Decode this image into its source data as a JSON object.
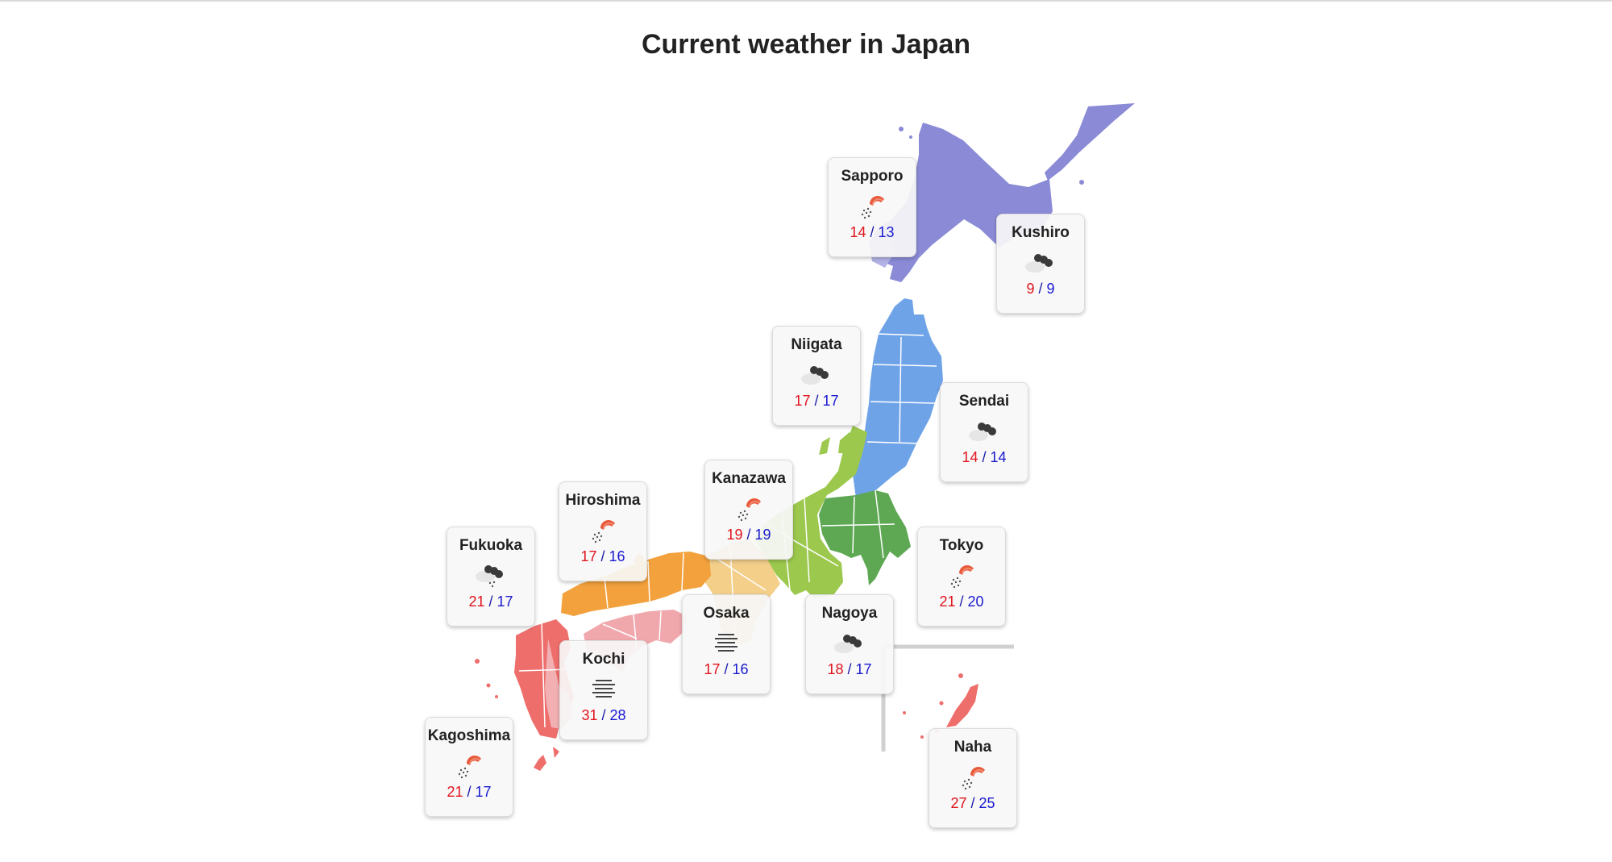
{
  "header": {
    "title": "Current weather in Japan"
  },
  "temp_separator": "/",
  "colors": {
    "hokkaido": "#8a8ad6",
    "tohoku": "#6ea3e8",
    "kanto": "#5ea854",
    "chubu": "#9cc84e",
    "kinki": "#f3cf8a",
    "chugoku": "#f2a13c",
    "shikoku": "#f0a8ad",
    "kyushu": "#ee6e6c",
    "high_temp": "#e0141e",
    "low_temp": "#1a1ad0"
  },
  "cities": [
    {
      "name": "Sapporo",
      "weather": "sun-rain-icon",
      "high": "14",
      "low": "13"
    },
    {
      "name": "Kushiro",
      "weather": "cloud-icon",
      "high": "9",
      "low": "9"
    },
    {
      "name": "Niigata",
      "weather": "cloud-icon",
      "high": "17",
      "low": "17"
    },
    {
      "name": "Sendai",
      "weather": "cloud-icon",
      "high": "14",
      "low": "14"
    },
    {
      "name": "Kanazawa",
      "weather": "sun-rain-icon",
      "high": "19",
      "low": "19"
    },
    {
      "name": "Hiroshima",
      "weather": "sun-rain-icon",
      "high": "17",
      "low": "16"
    },
    {
      "name": "Fukuoka",
      "weather": "cloud-rain-icon",
      "high": "21",
      "low": "17"
    },
    {
      "name": "Tokyo",
      "weather": "sun-rain-icon",
      "high": "21",
      "low": "20"
    },
    {
      "name": "Osaka",
      "weather": "fog-icon",
      "high": "17",
      "low": "16"
    },
    {
      "name": "Nagoya",
      "weather": "cloud-icon",
      "high": "18",
      "low": "17"
    },
    {
      "name": "Kochi",
      "weather": "fog-icon",
      "high": "31",
      "low": "28"
    },
    {
      "name": "Kagoshima",
      "weather": "sun-rain-icon",
      "high": "21",
      "low": "17"
    },
    {
      "name": "Naha",
      "weather": "sun-rain-icon",
      "high": "27",
      "low": "25"
    }
  ]
}
